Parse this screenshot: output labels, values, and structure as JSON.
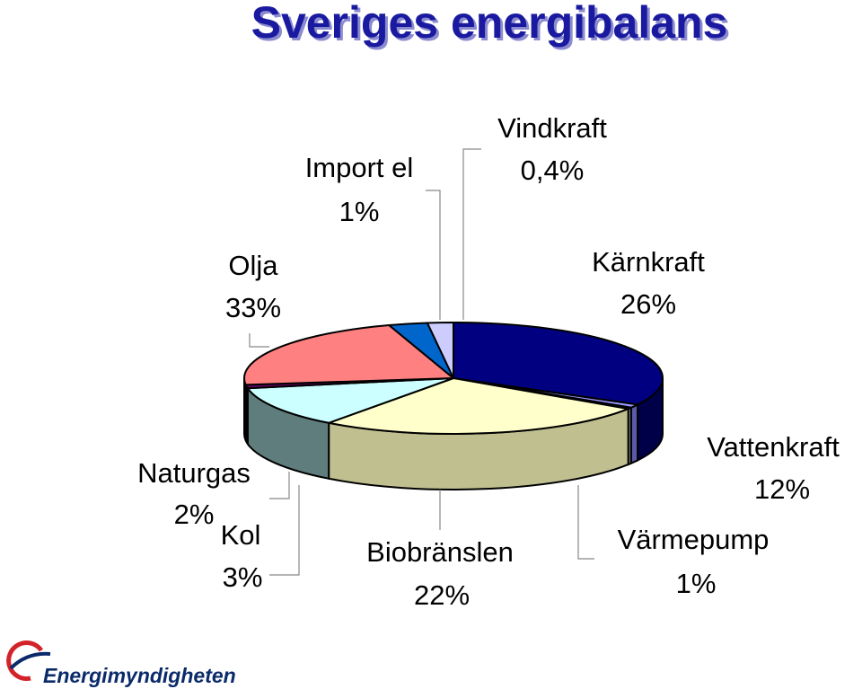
{
  "chart_data": {
    "type": "pie",
    "title": "Sveriges energibalans",
    "slices": [
      {
        "label": "Olja",
        "value": 33,
        "display": "33%",
        "color": "#000080",
        "side": "#000048"
      },
      {
        "label": "Import el",
        "value": 1,
        "display": "1%",
        "color": "#9999ff",
        "side": "#5a5aa8"
      },
      {
        "label": "Vindkraft",
        "value": 0.4,
        "display": "0,4%",
        "color": "#cccccc",
        "side": "#8c8c8c"
      },
      {
        "label": "Kärnkraft",
        "value": 26,
        "display": "26%",
        "color": "#ffffcc",
        "side": "#bfbf90"
      },
      {
        "label": "Vattenkraft",
        "value": 12,
        "display": "12%",
        "color": "#ccffff",
        "side": "#607d7d"
      },
      {
        "label": "Värmepump",
        "value": 1,
        "display": "1%",
        "color": "#660066",
        "side": "#330033"
      },
      {
        "label": "Biobränslen",
        "value": 22,
        "display": "22%",
        "color": "#ff8080",
        "side": "#80403f"
      },
      {
        "label": "Kol",
        "value": 3,
        "display": "3%",
        "color": "#0066cc",
        "side": "#003366"
      },
      {
        "label": "Naturgas",
        "value": 2,
        "display": "2%",
        "color": "#ccccff",
        "side": "#666680"
      }
    ]
  },
  "logo": {
    "text": "Energimyndigheten"
  }
}
